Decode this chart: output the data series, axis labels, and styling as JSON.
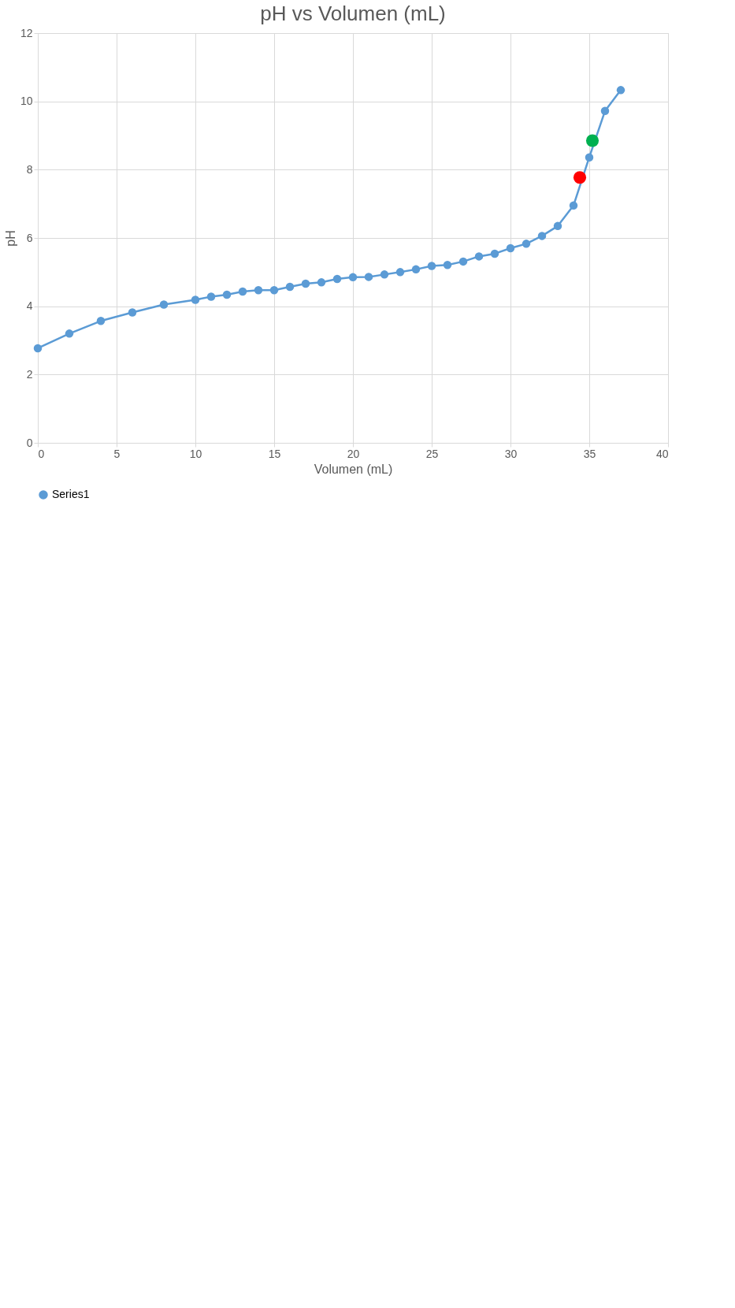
{
  "chart_data": {
    "type": "line",
    "title": "pH vs Volumen (mL)",
    "xlabel": "Volumen (mL)",
    "ylabel": "pH",
    "x": [
      0,
      2,
      4,
      6,
      8,
      10,
      11,
      12,
      13,
      14,
      15,
      16,
      17,
      18,
      19,
      20,
      21,
      22,
      23,
      24,
      25,
      26,
      27,
      28,
      29,
      30,
      31,
      32,
      33,
      34,
      35,
      36,
      37
    ],
    "series": [
      {
        "name": "Series1",
        "color": "#5b9bd5",
        "values": [
          2.77,
          3.2,
          3.57,
          3.82,
          4.05,
          4.19,
          4.28,
          4.34,
          4.43,
          4.47,
          4.47,
          4.57,
          4.66,
          4.7,
          4.8,
          4.85,
          4.86,
          4.93,
          5.0,
          5.08,
          5.18,
          5.21,
          5.31,
          5.46,
          5.54,
          5.7,
          5.83,
          6.06,
          6.35,
          6.95,
          8.36,
          9.72,
          10.33
        ]
      },
      {
        "type": "scatter",
        "color": "#ff0000",
        "x": [
          34.4
        ],
        "values": [
          7.77
        ]
      },
      {
        "type": "scatter",
        "color": "#00b050",
        "x": [
          35.2
        ],
        "values": [
          8.85
        ]
      }
    ],
    "xlim": [
      0,
      40
    ],
    "xticks": [
      0,
      5,
      10,
      15,
      20,
      25,
      30,
      35,
      40
    ],
    "ylim": [
      0,
      12
    ],
    "yticks": [
      0,
      2,
      4,
      6,
      8,
      10,
      12
    ],
    "grid": true,
    "legend": "bottom",
    "marker": "circle"
  }
}
